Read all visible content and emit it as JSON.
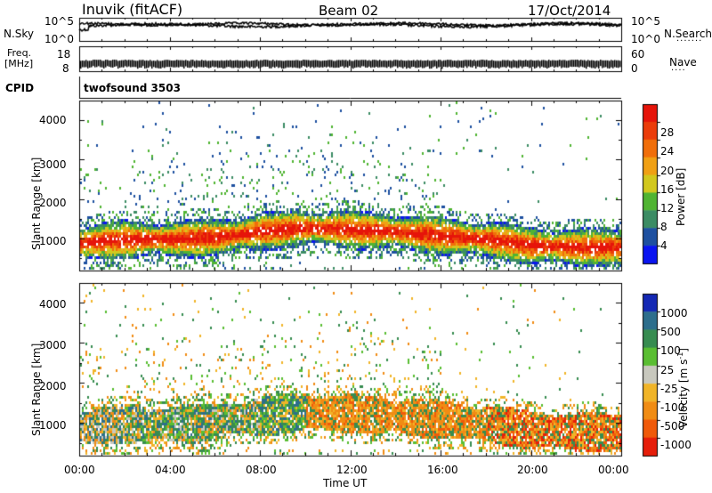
{
  "header": {
    "station": "Inuvik (fitACF)",
    "beam": "Beam 02",
    "date": "17/Oct/2014"
  },
  "nsky_panel": {
    "left_label": "N.Sky",
    "left_ticks": [
      "10^5",
      "10^0"
    ],
    "right_label": "N.Search",
    "right_ticks": [
      "10^5",
      "10^0"
    ]
  },
  "freq_panel": {
    "left_label_line1": "Freq.",
    "left_label_line2": "[MHz]",
    "left_ticks": [
      "18",
      "8"
    ],
    "right_label": "Nave",
    "right_ticks": [
      "60",
      "0"
    ]
  },
  "cpid_panel": {
    "label": "CPID",
    "program": "twofsound 3503"
  },
  "time_axis": {
    "label": "Time UT",
    "ticks": [
      "00:00",
      "04:00",
      "08:00",
      "12:00",
      "16:00",
      "20:00",
      "00:00"
    ]
  },
  "chart_data": [
    {
      "type": "heatmap",
      "name": "power",
      "ylabel": "Slant Range [km]",
      "yticks": [
        "1000",
        "2000",
        "3000",
        "4000"
      ],
      "ylim": [
        180,
        4500
      ],
      "xlim_hours": [
        0,
        24
      ],
      "colorbar_label": "Power [dB]",
      "colorbar_ticks": [
        "4",
        "8",
        "12",
        "16",
        "20",
        "24",
        "28"
      ],
      "colorbar_range": [
        0,
        30
      ],
      "colors": [
        "#0a14f0",
        "#1e50a0",
        "#3c8c64",
        "#50b432",
        "#d2c81e",
        "#f0a014",
        "#f06e0a",
        "#eb3c0a",
        "#e6140a"
      ],
      "main_band_km": [
        {
          "h": 0,
          "km": 900
        },
        {
          "h": 2,
          "km": 1000
        },
        {
          "h": 4,
          "km": 1000
        },
        {
          "h": 6,
          "km": 1050
        },
        {
          "h": 8,
          "km": 1200
        },
        {
          "h": 10,
          "km": 1300
        },
        {
          "h": 12,
          "km": 1250
        },
        {
          "h": 14,
          "km": 1200
        },
        {
          "h": 16,
          "km": 1100
        },
        {
          "h": 18,
          "km": 1000
        },
        {
          "h": 20,
          "km": 850
        },
        {
          "h": 22,
          "km": 800
        },
        {
          "h": 24,
          "km": 800
        }
      ]
    },
    {
      "type": "heatmap",
      "name": "velocity",
      "ylabel": "Slant Range [km]",
      "yticks": [
        "1000",
        "2000",
        "3000",
        "4000"
      ],
      "ylim": [
        180,
        4500
      ],
      "xlim_hours": [
        0,
        24
      ],
      "colorbar_label": "Velocity [m s^-1]",
      "colorbar_ticks": [
        "1000",
        "500",
        "100",
        "25",
        "-25",
        "-100",
        "-500",
        "-1000"
      ],
      "colors": [
        "#1428b4",
        "#2d6e8c",
        "#378c50",
        "#5abe32",
        "#c8c8be",
        "#f0b428",
        "#f08c14",
        "#f05a0a",
        "#e61e0a"
      ]
    }
  ]
}
